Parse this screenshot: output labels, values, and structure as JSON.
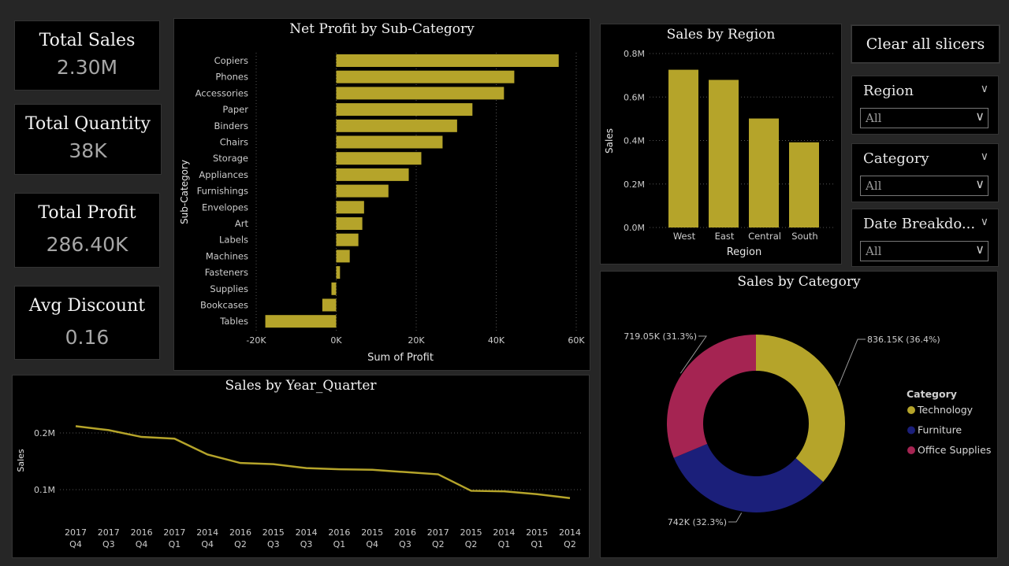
{
  "kpis": {
    "sales": {
      "label": "Total Sales",
      "value": "2.30M"
    },
    "quantity": {
      "label": "Total Quantity",
      "value": "38K"
    },
    "profit": {
      "label": "Total Profit",
      "value": "286.40K"
    },
    "discount": {
      "label": "Avg Discount",
      "value": "0.16"
    }
  },
  "slicers": {
    "clear_label": "Clear all slicers",
    "region": {
      "title": "Region",
      "value": "All"
    },
    "category": {
      "title": "Category",
      "value": "All"
    },
    "date": {
      "title": "Date Breakdo...",
      "value": "All"
    }
  },
  "colors": {
    "gold": "#b5a42a",
    "navy": "#1b1f7a",
    "crimson": "#a52452",
    "gridline": "#555555",
    "axis_text": "#cccccc"
  },
  "charts": {
    "profit": {
      "title": "Net Profit by Sub-Category",
      "chart_data": {
        "type": "bar",
        "orientation": "horizontal",
        "categories": [
          "Copiers",
          "Phones",
          "Accessories",
          "Paper",
          "Binders",
          "Chairs",
          "Storage",
          "Appliances",
          "Furnishings",
          "Envelopes",
          "Art",
          "Labels",
          "Machines",
          "Fasteners",
          "Supplies",
          "Bookcases",
          "Tables"
        ],
        "values": [
          55618,
          44516,
          41937,
          34054,
          30222,
          26590,
          21279,
          18138,
          13059,
          6964,
          6528,
          5546,
          3385,
          950,
          -1189,
          -3473,
          -17725
        ],
        "xlabel": "Sum of Profit",
        "ylabel": "Sub-Category",
        "xlim": [
          -20000,
          60000
        ],
        "ticks": [
          {
            "v": -20000,
            "label": "-20K"
          },
          {
            "v": 0,
            "label": "0K"
          },
          {
            "v": 20000,
            "label": "20K"
          },
          {
            "v": 40000,
            "label": "40K"
          },
          {
            "v": 60000,
            "label": "60K"
          }
        ],
        "grid": true
      }
    },
    "region": {
      "title": "Sales by Region",
      "chart_data": {
        "type": "bar",
        "categories": [
          "West",
          "East",
          "Central",
          "South"
        ],
        "values": [
          725458,
          678781,
          501240,
          391722
        ],
        "xlabel": "Region",
        "ylabel": "Sales",
        "ylim": [
          0,
          800000
        ],
        "ticks": [
          {
            "v": 0,
            "label": "0.0M"
          },
          {
            "v": 200000,
            "label": "0.2M"
          },
          {
            "v": 400000,
            "label": "0.4M"
          },
          {
            "v": 600000,
            "label": "0.6M"
          },
          {
            "v": 800000,
            "label": "0.8M"
          }
        ],
        "grid": true
      }
    },
    "quarter": {
      "title": "Sales by Year_Quarter",
      "chart_data": {
        "type": "line",
        "categories": [
          {
            "year": "2017",
            "q": "Q4"
          },
          {
            "year": "2017",
            "q": "Q3"
          },
          {
            "year": "2016",
            "q": "Q4"
          },
          {
            "year": "2017",
            "q": "Q1"
          },
          {
            "year": "2014",
            "q": "Q4"
          },
          {
            "year": "2016",
            "q": "Q2"
          },
          {
            "year": "2015",
            "q": "Q3"
          },
          {
            "year": "2014",
            "q": "Q3"
          },
          {
            "year": "2016",
            "q": "Q1"
          },
          {
            "year": "2015",
            "q": "Q4"
          },
          {
            "year": "2016",
            "q": "Q3"
          },
          {
            "year": "2017",
            "q": "Q2"
          },
          {
            "year": "2015",
            "q": "Q2"
          },
          {
            "year": "2014",
            "q": "Q1"
          },
          {
            "year": "2015",
            "q": "Q1"
          },
          {
            "year": "2014",
            "q": "Q2"
          }
        ],
        "values": [
          212000,
          205000,
          193000,
          190000,
          162000,
          147000,
          145000,
          138000,
          136000,
          135000,
          131000,
          127000,
          98000,
          97000,
          92000,
          85000
        ],
        "xlabel": "",
        "ylabel": "Sales",
        "ylim": [
          60000,
          230000
        ],
        "ticks": [
          {
            "v": 100000,
            "label": "0.1M"
          },
          {
            "v": 200000,
            "label": "0.2M"
          }
        ],
        "grid": true
      }
    },
    "category": {
      "title": "Sales by Category",
      "legend_title": "Category",
      "chart_data": {
        "type": "pie",
        "donut": true,
        "legend_position": "right",
        "slices": [
          {
            "name": "Technology",
            "value": 836150,
            "label": "836.15K (36.4%)",
            "color": "#b5a42a"
          },
          {
            "name": "Furniture",
            "value": 742000,
            "label": "742K (32.3%)",
            "color": "#1b1f7a"
          },
          {
            "name": "Office Supplies",
            "value": 719050,
            "label": "719.05K (31.3%)",
            "color": "#a52452"
          }
        ]
      }
    }
  }
}
